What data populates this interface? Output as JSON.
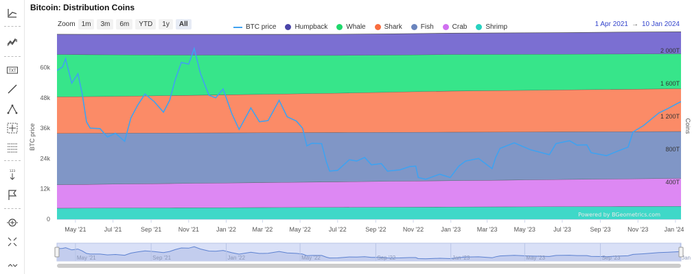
{
  "page": {
    "title": "Bitcoin: Distribution Coins"
  },
  "toolbar": {
    "icons": [
      "chart-type-icon",
      "indicators-icon",
      "text-annotation-icon",
      "line-tool-icon",
      "fibonacci-icon",
      "crosshair-grid-icon",
      "measure-grid-icon",
      "vertical-counter-icon",
      "flag-icon",
      "zoom-in-icon",
      "fullscreen-icon",
      "scroll-icon"
    ]
  },
  "zoom": {
    "label": "Zoom",
    "buttons": [
      "1m",
      "3m",
      "6m",
      "YTD",
      "1y",
      "All"
    ],
    "active": "All"
  },
  "range": {
    "from": "1 Apr 2021",
    "arrow": "→",
    "to": "10 Jan 2024"
  },
  "watermark": "Powered by BGeometrics.com",
  "chart_data": {
    "type": "area",
    "title": "Bitcoin: Distribution Coins",
    "legend_position": "top-center",
    "grid": false,
    "x_range": [
      "2021-04-01",
      "2024-01-10"
    ],
    "x_ticks": [
      "May '21",
      "Jul '21",
      "Sep '21",
      "Nov '21",
      "Jan '22",
      "Mar '22",
      "May '22",
      "Jul '22",
      "Sep '22",
      "Nov '22",
      "Jan '23",
      "Mar '23",
      "May '23",
      "Jul '23",
      "Sep '23",
      "Nov '23",
      "Jan '24"
    ],
    "y_left": {
      "label": "BTC price",
      "range": [
        0,
        65000
      ],
      "tick_values": [
        0,
        12000,
        24000,
        36000,
        48000,
        60000
      ],
      "tick_labels": [
        "0",
        "12k",
        "24k",
        "36k",
        "48k",
        "60k"
      ]
    },
    "y_right": {
      "label": "Coins",
      "range": [
        0,
        2000
      ],
      "tick_values": [
        400,
        800,
        1200,
        1600,
        2000
      ],
      "tick_labels": [
        "400T",
        "800T",
        "1 200T",
        "1 600T",
        "2 000T"
      ]
    },
    "x_dates": [
      "2021-04-01",
      "2021-07-01",
      "2021-10-01",
      "2022-01-01",
      "2022-04-01",
      "2022-07-01",
      "2022-10-01",
      "2023-01-01",
      "2023-04-01",
      "2023-07-01",
      "2023-10-01",
      "2024-01-10"
    ],
    "stacked_series": [
      {
        "name": "Shrimp",
        "color": "#3fd8c8",
        "values": [
          135,
          138,
          140,
          142,
          144,
          146,
          148,
          150,
          152,
          154,
          156,
          158
        ]
      },
      {
        "name": "Crab",
        "color": "#dd88f3",
        "values": [
          285,
          290,
          295,
          300,
          305,
          310,
          315,
          320,
          325,
          330,
          335,
          340
        ]
      },
      {
        "name": "Fish",
        "color": "#8096c6",
        "values": [
          625,
          620,
          615,
          610,
          605,
          600,
          595,
          590,
          585,
          580,
          575,
          570
        ]
      },
      {
        "name": "Shark",
        "color": "#fb8b67",
        "values": [
          445,
          448,
          455,
          462,
          470,
          478,
          490,
          500,
          505,
          510,
          515,
          520
        ]
      },
      {
        "name": "Whale",
        "color": "#37e58a",
        "values": [
          515,
          505,
          493,
          483,
          470,
          460,
          450,
          445,
          440,
          434,
          430,
          425
        ]
      },
      {
        "name": "Humpback",
        "color": "#7b6fd2",
        "values": [
          245,
          247,
          250,
          252,
          254,
          256,
          257,
          258,
          260,
          262,
          265,
          267
        ]
      }
    ],
    "line_series": {
      "name": "BTC price",
      "color": "#3fa2f0",
      "x": [
        "2021-04-01",
        "2021-04-10",
        "2021-04-15",
        "2021-04-25",
        "2021-05-05",
        "2021-05-12",
        "2021-05-19",
        "2021-05-25",
        "2021-06-10",
        "2021-06-22",
        "2021-07-05",
        "2021-07-20",
        "2021-07-30",
        "2021-08-10",
        "2021-08-22",
        "2021-09-06",
        "2021-09-21",
        "2021-10-01",
        "2021-10-10",
        "2021-10-20",
        "2021-11-01",
        "2021-11-10",
        "2021-11-20",
        "2021-12-04",
        "2021-12-15",
        "2021-12-27",
        "2022-01-10",
        "2022-01-22",
        "2022-02-10",
        "2022-02-24",
        "2022-03-10",
        "2022-03-28",
        "2022-04-10",
        "2022-04-25",
        "2022-05-05",
        "2022-05-12",
        "2022-05-20",
        "2022-06-05",
        "2022-06-13",
        "2022-06-18",
        "2022-07-01",
        "2022-07-20",
        "2022-08-01",
        "2022-08-14",
        "2022-08-25",
        "2022-09-10",
        "2022-09-20",
        "2022-10-10",
        "2022-10-26",
        "2022-11-05",
        "2022-11-09",
        "2022-11-21",
        "2022-12-14",
        "2022-12-31",
        "2023-01-14",
        "2023-01-25",
        "2023-02-15",
        "2023-03-09",
        "2023-03-15",
        "2023-03-22",
        "2023-04-14",
        "2023-05-10",
        "2023-06-10",
        "2023-06-21",
        "2023-07-13",
        "2023-07-25",
        "2023-08-10",
        "2023-08-17",
        "2023-09-11",
        "2023-09-30",
        "2023-10-16",
        "2023-10-24",
        "2023-11-10",
        "2023-12-05",
        "2023-12-20",
        "2024-01-02",
        "2024-01-10"
      ],
      "y": [
        58800,
        60200,
        63400,
        53800,
        57500,
        49500,
        38500,
        36000,
        35800,
        32500,
        34000,
        30800,
        40000,
        45000,
        49500,
        46500,
        42300,
        47000,
        55000,
        62000,
        61300,
        67500,
        57700,
        49000,
        48000,
        51500,
        41800,
        35500,
        44000,
        38500,
        39000,
        47000,
        40500,
        38800,
        36000,
        29000,
        30000,
        29900,
        22500,
        19000,
        19300,
        23500,
        23000,
        24400,
        21500,
        22000,
        19000,
        19500,
        20800,
        21000,
        16500,
        15800,
        17800,
        16500,
        21000,
        23000,
        24000,
        20000,
        24500,
        28000,
        30200,
        27500,
        25500,
        29900,
        31000,
        29300,
        29400,
        26300,
        25100,
        27000,
        28500,
        34500,
        37000,
        42000,
        43800,
        45500,
        46500
      ]
    }
  },
  "navigator": {
    "ticks": [
      "May '21",
      "Sep '21",
      "Jan '22",
      "May '22",
      "Sep '22",
      "Jan '23",
      "May '23",
      "Sep '23",
      "Jan '..."
    ]
  }
}
